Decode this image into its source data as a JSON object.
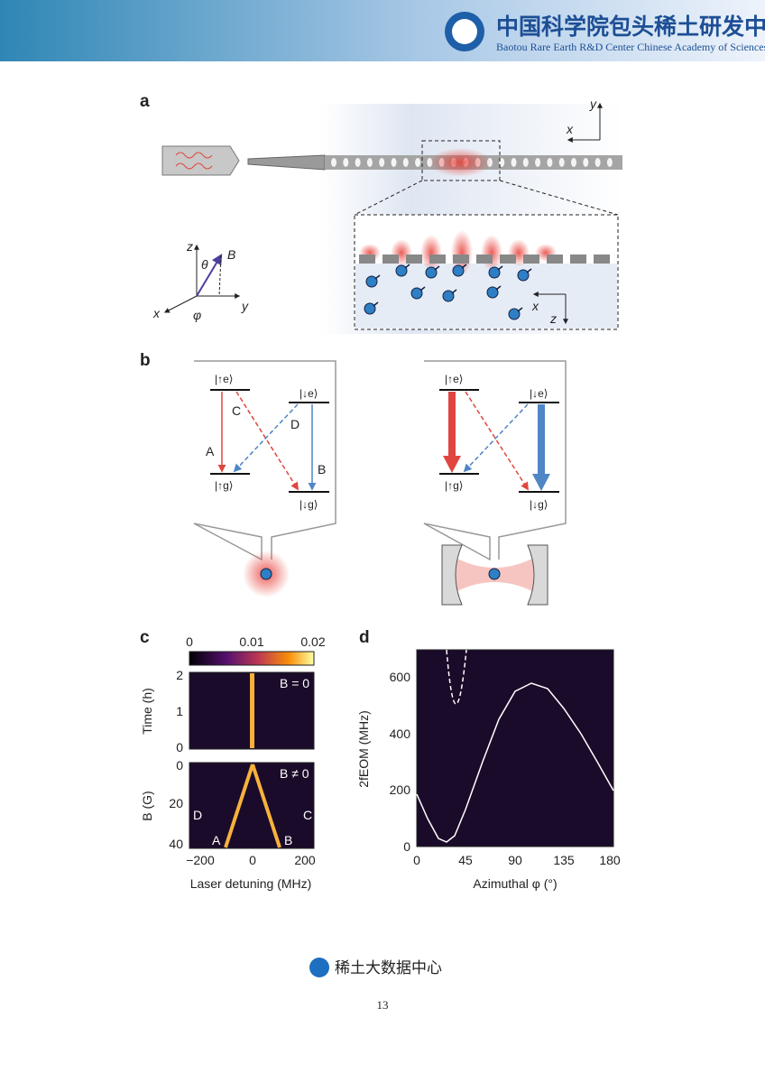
{
  "header": {
    "title_cn": "中国科学院包头稀土研发中心",
    "title_en": "Baotou Rare Earth R&D Center Chinese Academy of Sciences"
  },
  "figure": {
    "panel_a": {
      "label": "a",
      "frame_axes": [
        "y",
        "x"
      ],
      "vector_axes": [
        "z",
        "B",
        "θ",
        "x",
        "y",
        "φ"
      ],
      "inset_axes": [
        "x",
        "z"
      ]
    },
    "panel_b": {
      "label": "b",
      "left": {
        "states": [
          "|↑e⟩",
          "|↓e⟩",
          "|↑g⟩",
          "|↓g⟩"
        ],
        "transitions": [
          "A",
          "B",
          "C",
          "D"
        ]
      },
      "right": {
        "states": [
          "|↑e⟩",
          "|↓e⟩",
          "|↑g⟩",
          "|↓g⟩"
        ]
      }
    },
    "panel_c": {
      "label": "c",
      "colorbar_ticks": [
        "0",
        "0.01",
        "0.02"
      ],
      "top": {
        "ylabel": "Time (h)",
        "yticks": [
          "2",
          "1",
          "0"
        ],
        "annotation": "B = 0"
      },
      "bottom": {
        "ylabel": "B (G)",
        "yticks": [
          "0",
          "20",
          "40"
        ],
        "annotation": "B ≠ 0",
        "lines": [
          "D",
          "C",
          "A",
          "B"
        ]
      },
      "xticks": [
        "−200",
        "0",
        "200"
      ],
      "xlabel": "Laser detuning (MHz)"
    },
    "panel_d": {
      "label": "d",
      "ylabel": "2fEOM (MHz)",
      "yticks": [
        "0",
        "200",
        "400",
        "600"
      ],
      "xticks": [
        "0",
        "45",
        "90",
        "135",
        "180"
      ],
      "xlabel": "Azimuthal φ (°)"
    }
  },
  "footer": {
    "brand": "稀土大数据中心",
    "page": "13"
  }
}
